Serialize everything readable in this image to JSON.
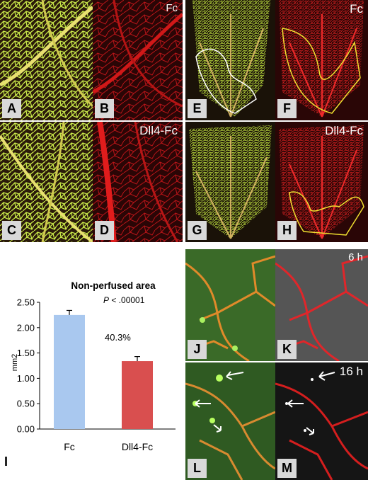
{
  "figure": {
    "panels": [
      {
        "letter": "A",
        "tag": ""
      },
      {
        "letter": "B",
        "tag": "Fc"
      },
      {
        "letter": "C",
        "tag": ""
      },
      {
        "letter": "D",
        "tag": "Dll4-Fc"
      },
      {
        "letter": "E",
        "tag": ""
      },
      {
        "letter": "F",
        "tag": "Fc"
      },
      {
        "letter": "G",
        "tag": ""
      },
      {
        "letter": "H",
        "tag": "Dll4-Fc"
      },
      {
        "letter": "J",
        "tag": ""
      },
      {
        "letter": "K",
        "tag": "6 h"
      },
      {
        "letter": "L",
        "tag": ""
      },
      {
        "letter": "M",
        "tag": "16 h"
      }
    ]
  },
  "chart_data": {
    "type": "bar",
    "panel_letter": "I",
    "title": "Non-perfused area",
    "ylabel": "mm2",
    "ylim": [
      0,
      2.5
    ],
    "yticks": [
      "0.00",
      "0.50",
      "1.00",
      "1.50",
      "2.00",
      "2.50"
    ],
    "categories": [
      "Fc",
      "Dll4-Fc"
    ],
    "values": [
      2.25,
      1.34
    ],
    "errors": [
      0.09,
      0.09
    ],
    "bar_colors": [
      "#a9c8ef",
      "#d94f4f"
    ],
    "annotation_p_italic": "P",
    "annotation_p_rest": " < .00001",
    "annotation_pct": "40.3%",
    "grid": false
  }
}
